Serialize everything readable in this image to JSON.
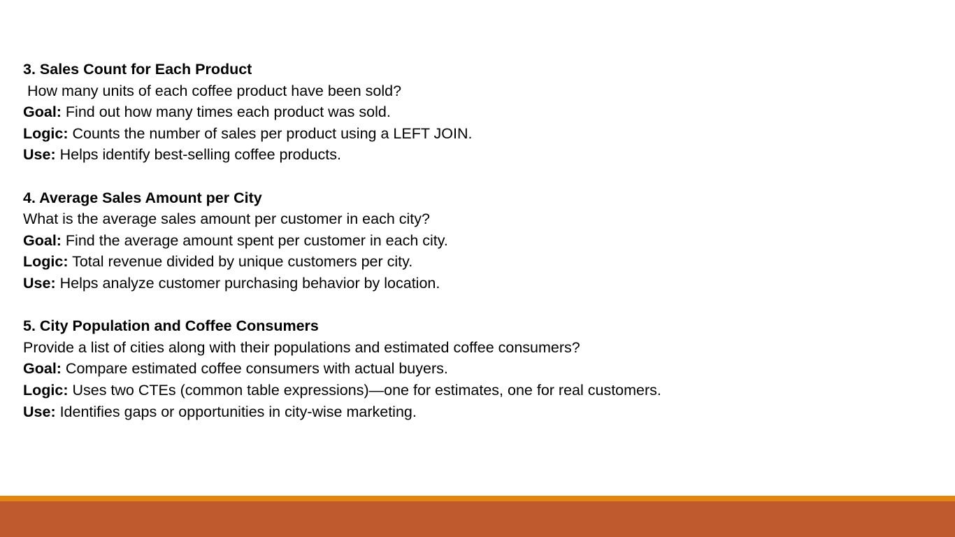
{
  "colors": {
    "footer_accent": "#e3860f",
    "footer_bar": "#be5a2e"
  },
  "sections": [
    {
      "title": "3. Sales Count for Each Product",
      "question": " How many units of each coffee product have been sold?",
      "goal_label": "Goal:",
      "goal": " Find out how many times each product was sold.",
      "logic_label": "Logic:",
      "logic": " Counts the number of sales per product using a LEFT JOIN.",
      "use_label": "Use:",
      "use": " Helps identify best-selling coffee products."
    },
    {
      "title": "4. Average Sales Amount per City",
      "question": "What is the average sales amount per customer in each city?",
      "goal_label": "Goal:",
      "goal": " Find the average amount spent per customer in each city.",
      "logic_label": "Logic:",
      "logic": " Total revenue divided by unique customers per city.",
      "use_label": "Use:",
      "use": " Helps analyze customer purchasing behavior by location."
    },
    {
      "title": "5. City Population and Coffee Consumers",
      "question": "Provide a list of cities along with their populations and estimated coffee consumers?",
      "goal_label": "Goal:",
      "goal": " Compare estimated coffee consumers with actual buyers.",
      "logic_label": "Logic:",
      "logic": " Uses two CTEs (common table expressions)—one for estimates, one for real customers.",
      "use_label": "Use:",
      "use": " Identifies gaps or opportunities in city-wise marketing."
    }
  ]
}
